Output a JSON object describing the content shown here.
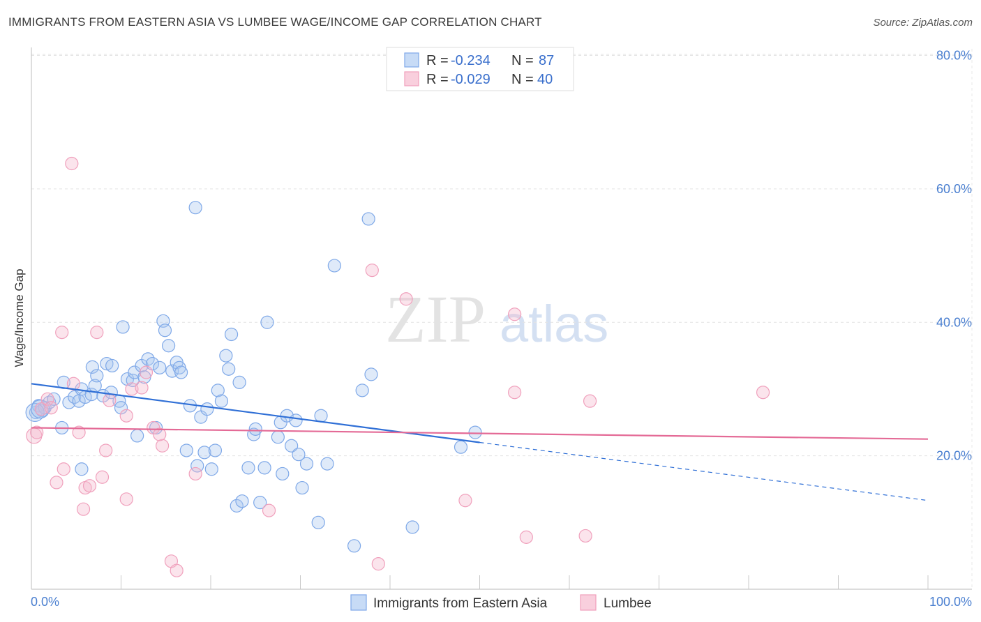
{
  "title": "IMMIGRANTS FROM EASTERN ASIA VS LUMBEE WAGE/INCOME GAP CORRELATION CHART",
  "source": "Source: ZipAtlas.com",
  "watermark": {
    "zip": "ZIP",
    "atlas": "atlas"
  },
  "chart_data": {
    "type": "scatter",
    "ylabel": "Wage/Income Gap",
    "xlabel": "",
    "xlim": [
      0,
      100
    ],
    "ylim": [
      0,
      85
    ],
    "y_ticks": [
      {
        "value": 20,
        "label": "20.0%"
      },
      {
        "value": 40,
        "label": "40.0%"
      },
      {
        "value": 60,
        "label": "60.0%"
      },
      {
        "value": 80,
        "label": "80.0%"
      }
    ],
    "x_tick_labels": {
      "left": "0.0%",
      "right": "100.0%"
    },
    "grid": true,
    "legend_top": [
      {
        "r_label": "R = ",
        "r_value": "-0.234",
        "n_label": "N = ",
        "n_value": "87",
        "color": "#7ea8e8"
      },
      {
        "r_label": "R = ",
        "r_value": "-0.029",
        "n_label": "N = ",
        "n_value": "40",
        "color": "#f0a0bc"
      }
    ],
    "series": [
      {
        "name": "Immigrants from Eastern Asia",
        "color": "#7ea8e8",
        "trend": {
          "x0": 0,
          "y0": 30.8,
          "x1": 50,
          "y1": 22.0,
          "dash_to_x": 100,
          "dash_to_y": 13.3,
          "color": "#2f6fd6"
        },
        "points": [
          [
            0.5,
            26.5
          ],
          [
            0.8,
            27.5
          ],
          [
            1.2,
            26.8
          ],
          [
            1.5,
            27.2
          ],
          [
            2.0,
            28.0
          ],
          [
            2.5,
            28.5
          ],
          [
            3.4,
            24.2
          ],
          [
            3.6,
            31.0
          ],
          [
            4.2,
            28.0
          ],
          [
            4.8,
            28.8
          ],
          [
            5.3,
            28.2
          ],
          [
            5.6,
            30.0
          ],
          [
            5.6,
            18.0
          ],
          [
            6.0,
            28.8
          ],
          [
            6.7,
            29.2
          ],
          [
            6.8,
            33.3
          ],
          [
            7.1,
            30.5
          ],
          [
            7.3,
            32.0
          ],
          [
            8.0,
            29.0
          ],
          [
            8.4,
            33.8
          ],
          [
            8.9,
            29.5
          ],
          [
            9.0,
            33.5
          ],
          [
            9.8,
            28.2
          ],
          [
            10.0,
            27.2
          ],
          [
            10.2,
            39.3
          ],
          [
            10.7,
            31.5
          ],
          [
            11.3,
            31.3
          ],
          [
            11.5,
            32.5
          ],
          [
            11.8,
            23.0
          ],
          [
            12.3,
            33.5
          ],
          [
            12.6,
            31.8
          ],
          [
            13.0,
            34.5
          ],
          [
            13.5,
            33.8
          ],
          [
            13.9,
            24.2
          ],
          [
            14.3,
            33.2
          ],
          [
            14.7,
            40.2
          ],
          [
            14.9,
            38.8
          ],
          [
            15.3,
            36.5
          ],
          [
            15.7,
            32.7
          ],
          [
            16.2,
            34.0
          ],
          [
            16.5,
            33.2
          ],
          [
            16.7,
            32.5
          ],
          [
            17.3,
            20.8
          ],
          [
            17.7,
            27.5
          ],
          [
            18.3,
            57.2
          ],
          [
            18.5,
            18.5
          ],
          [
            18.9,
            25.8
          ],
          [
            19.3,
            20.5
          ],
          [
            19.6,
            27.0
          ],
          [
            20.1,
            18.0
          ],
          [
            20.5,
            20.8
          ],
          [
            20.8,
            29.8
          ],
          [
            21.2,
            28.2
          ],
          [
            21.7,
            35.0
          ],
          [
            22.0,
            33.0
          ],
          [
            22.3,
            38.2
          ],
          [
            22.9,
            12.5
          ],
          [
            23.2,
            31.0
          ],
          [
            23.5,
            13.2
          ],
          [
            24.2,
            18.2
          ],
          [
            24.8,
            23.2
          ],
          [
            25.0,
            24.0
          ],
          [
            25.5,
            13.0
          ],
          [
            26.0,
            18.2
          ],
          [
            26.3,
            40.0
          ],
          [
            27.5,
            22.8
          ],
          [
            27.8,
            25.0
          ],
          [
            28.0,
            17.3
          ],
          [
            28.5,
            26.0
          ],
          [
            29.0,
            21.5
          ],
          [
            29.5,
            25.3
          ],
          [
            29.8,
            20.2
          ],
          [
            30.2,
            15.2
          ],
          [
            30.7,
            18.8
          ],
          [
            32.0,
            10.0
          ],
          [
            32.3,
            26.0
          ],
          [
            33.0,
            18.8
          ],
          [
            33.8,
            48.5
          ],
          [
            36.0,
            6.5
          ],
          [
            36.9,
            29.8
          ],
          [
            37.6,
            55.5
          ],
          [
            37.9,
            32.2
          ],
          [
            42.5,
            9.3
          ],
          [
            47.9,
            21.3
          ],
          [
            49.5,
            23.5
          ],
          [
            0.4,
            26.5
          ],
          [
            1.0,
            27.0
          ]
        ]
      },
      {
        "name": "Lumbee",
        "color": "#f0a0bc",
        "trend": {
          "x0": 0,
          "y0": 24.2,
          "x1": 100,
          "y1": 22.5,
          "color": "#e46a96"
        },
        "points": [
          [
            0.3,
            23.0
          ],
          [
            0.6,
            23.5
          ],
          [
            1.1,
            27.0
          ],
          [
            1.8,
            28.5
          ],
          [
            2.2,
            27.2
          ],
          [
            2.8,
            16.0
          ],
          [
            3.4,
            38.5
          ],
          [
            3.6,
            18.0
          ],
          [
            4.5,
            63.8
          ],
          [
            4.7,
            30.8
          ],
          [
            5.3,
            23.5
          ],
          [
            5.8,
            12.0
          ],
          [
            6.0,
            15.2
          ],
          [
            6.5,
            15.5
          ],
          [
            7.3,
            38.5
          ],
          [
            7.9,
            16.8
          ],
          [
            8.3,
            20.8
          ],
          [
            8.7,
            28.3
          ],
          [
            10.6,
            26.0
          ],
          [
            10.6,
            13.5
          ],
          [
            11.2,
            30.0
          ],
          [
            12.3,
            30.2
          ],
          [
            12.8,
            32.5
          ],
          [
            13.6,
            24.2
          ],
          [
            14.6,
            21.5
          ],
          [
            14.3,
            23.2
          ],
          [
            15.6,
            4.2
          ],
          [
            16.2,
            2.8
          ],
          [
            18.3,
            17.3
          ],
          [
            26.5,
            11.8
          ],
          [
            38.0,
            47.8
          ],
          [
            38.7,
            3.8
          ],
          [
            41.8,
            43.5
          ],
          [
            48.4,
            13.3
          ],
          [
            53.9,
            41.2
          ],
          [
            53.9,
            29.5
          ],
          [
            55.2,
            7.8
          ],
          [
            61.8,
            8.0
          ],
          [
            62.3,
            28.2
          ],
          [
            81.6,
            29.5
          ]
        ]
      }
    ]
  }
}
